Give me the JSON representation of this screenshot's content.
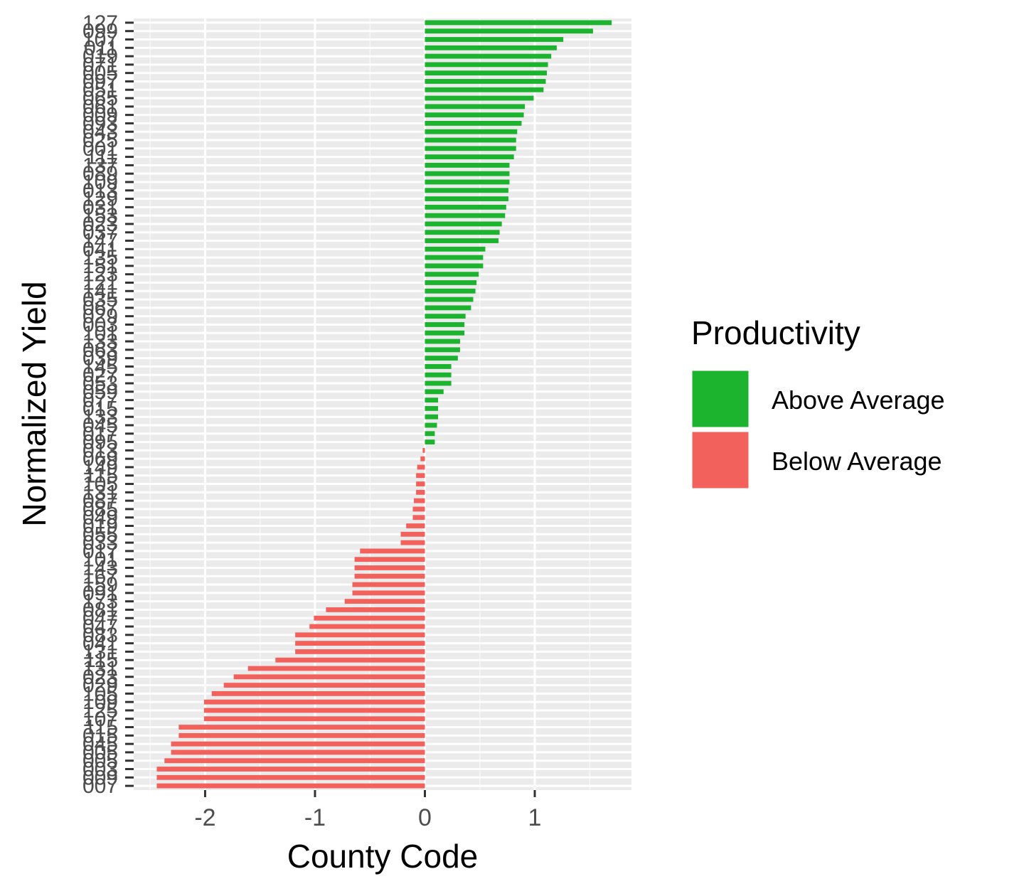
{
  "chart_data": {
    "type": "bar",
    "orientation": "horizontal",
    "title": "",
    "xlabel": "County Code",
    "ylabel": "Normalized Yield",
    "xlim": [
      -2.65,
      1.88
    ],
    "x_ticks": [
      -2,
      -1,
      0,
      1
    ],
    "x_tick_labels": [
      "-2",
      "-1",
      "0",
      "1"
    ],
    "grid": true,
    "legend": {
      "title": "Productivity",
      "position": "right",
      "entries": [
        {
          "label": "Above Average",
          "color": "#1cb42f"
        },
        {
          "label": "Below Average",
          "color": "#f2615c"
        }
      ]
    },
    "categories": [
      "127",
      "099",
      "107",
      "011",
      "019",
      "071",
      "005",
      "097",
      "051",
      "065",
      "061",
      "009",
      "093",
      "043",
      "025",
      "001",
      "111",
      "137",
      "089",
      "109",
      "013",
      "129",
      "031",
      "153",
      "023",
      "037",
      "147",
      "041",
      "135",
      "151",
      "123",
      "121",
      "141",
      "035",
      "067",
      "029",
      "003",
      "101",
      "133",
      "063",
      "039",
      "145",
      "027",
      "053",
      "059",
      "077",
      "015",
      "133",
      "045",
      "017",
      "095",
      "013",
      "069",
      "149",
      "115",
      "105",
      "131",
      "087",
      "085",
      "049",
      "019",
      "055",
      "033",
      "017",
      "101",
      "143",
      "167",
      "159",
      "091",
      "173",
      "081",
      "047",
      "047",
      "083",
      "041",
      "131",
      "115",
      "131",
      "023",
      "029",
      "105",
      "109",
      "125",
      "107",
      "115",
      "015",
      "045",
      "005",
      "005",
      "003",
      "009",
      "007"
    ],
    "values": [
      1.7,
      1.53,
      1.26,
      1.2,
      1.15,
      1.12,
      1.11,
      1.1,
      1.08,
      0.99,
      0.91,
      0.9,
      0.88,
      0.84,
      0.83,
      0.83,
      0.81,
      0.77,
      0.77,
      0.77,
      0.76,
      0.76,
      0.74,
      0.73,
      0.7,
      0.68,
      0.67,
      0.55,
      0.53,
      0.53,
      0.49,
      0.47,
      0.46,
      0.44,
      0.42,
      0.37,
      0.36,
      0.36,
      0.32,
      0.32,
      0.3,
      0.24,
      0.24,
      0.24,
      0.17,
      0.12,
      0.12,
      0.12,
      0.11,
      0.09,
      0.09,
      -0.02,
      -0.04,
      -0.07,
      -0.08,
      -0.08,
      -0.08,
      -0.1,
      -0.11,
      -0.11,
      -0.17,
      -0.22,
      -0.22,
      -0.59,
      -0.64,
      -0.64,
      -0.64,
      -0.66,
      -0.66,
      -0.73,
      -0.9,
      -1.01,
      -1.05,
      -1.18,
      -1.18,
      -1.18,
      -1.36,
      -1.61,
      -1.74,
      -1.83,
      -1.94,
      -2.01,
      -2.01,
      -2.01,
      -2.24,
      -2.24,
      -2.31,
      -2.31,
      -2.37,
      -2.44,
      -2.44,
      -2.44
    ]
  }
}
